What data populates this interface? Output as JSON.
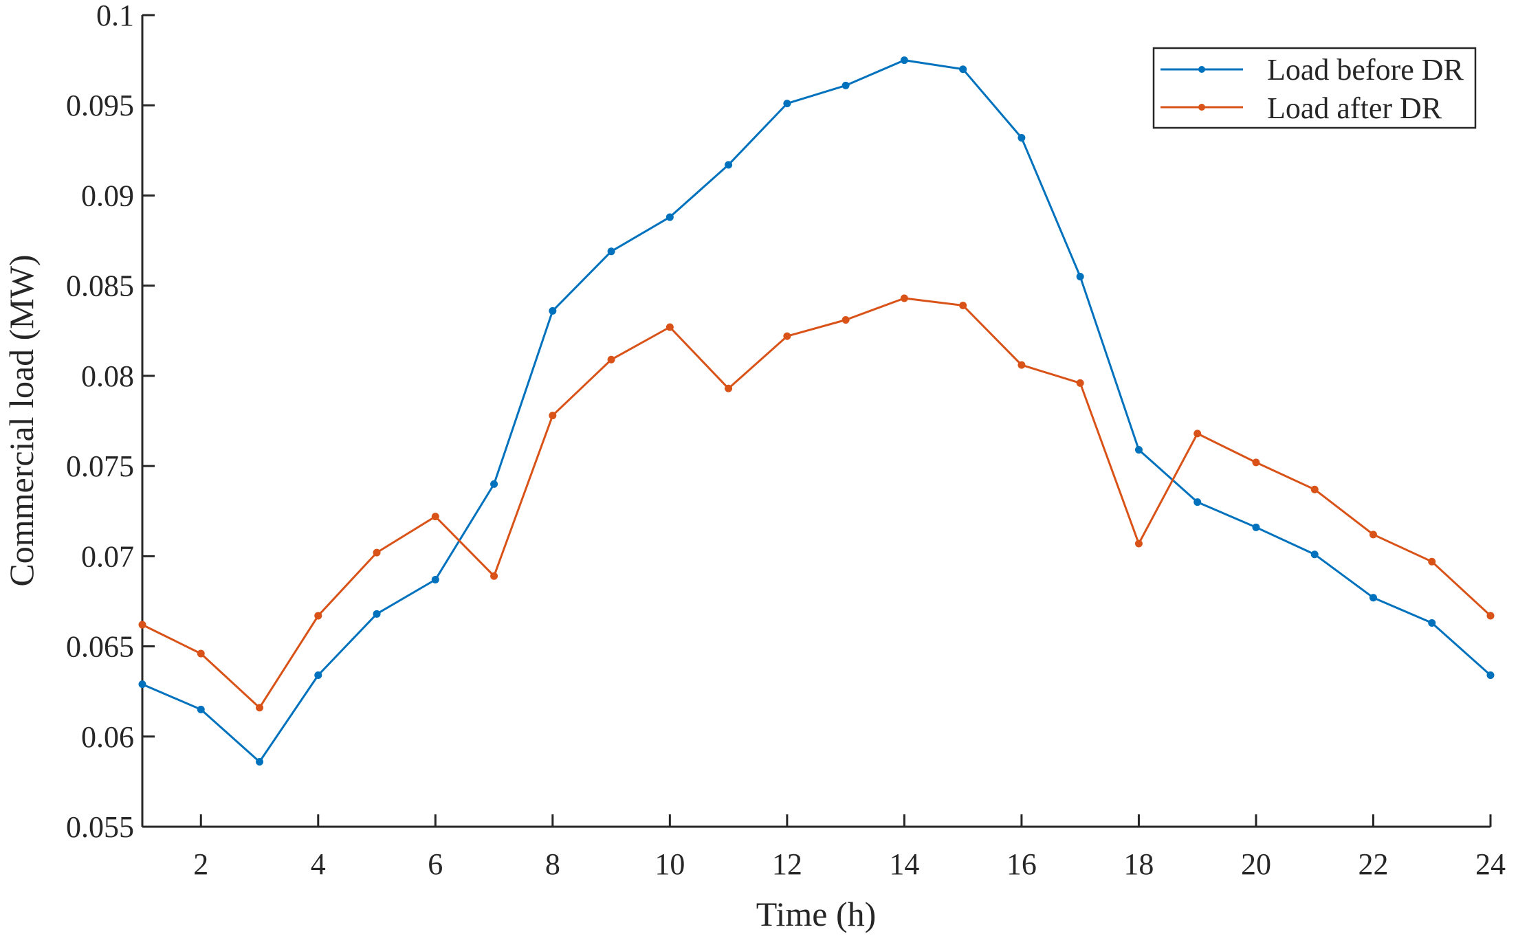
{
  "chart_data": {
    "type": "line",
    "title": "",
    "xlabel": "Time (h)",
    "ylabel": "Commercial load (MW)",
    "xlim": [
      1,
      24
    ],
    "ylim": [
      0.055,
      0.1
    ],
    "xticks": [
      2,
      4,
      6,
      8,
      10,
      12,
      14,
      16,
      18,
      20,
      22,
      24
    ],
    "xtick_labels": [
      "2",
      "4",
      "6",
      "8",
      "10",
      "12",
      "14",
      "16",
      "18",
      "20",
      "22",
      "24"
    ],
    "yticks": [
      0.055,
      0.06,
      0.065,
      0.07,
      0.075,
      0.08,
      0.085,
      0.09,
      0.095,
      0.1
    ],
    "ytick_labels": [
      "0.055",
      "0.06",
      "0.065",
      "0.07",
      "0.075",
      "0.08",
      "0.085",
      "0.09",
      "0.095",
      "0.1"
    ],
    "grid": false,
    "legend_position": "top-right",
    "x": [
      1,
      2,
      3,
      4,
      5,
      6,
      7,
      8,
      9,
      10,
      11,
      12,
      13,
      14,
      15,
      16,
      17,
      18,
      19,
      20,
      21,
      22,
      23,
      24
    ],
    "series": [
      {
        "name": "Load before DR",
        "color": "#0072BD",
        "marker": "dot",
        "values": [
          0.0629,
          0.0615,
          0.0586,
          0.0634,
          0.0668,
          0.0687,
          0.074,
          0.0836,
          0.0869,
          0.0888,
          0.0917,
          0.0951,
          0.0961,
          0.0975,
          0.097,
          0.0932,
          0.0855,
          0.0759,
          0.073,
          0.0716,
          0.0701,
          0.0677,
          0.0663,
          0.0634
        ]
      },
      {
        "name": "Load after DR",
        "color": "#D95319",
        "marker": "dot",
        "values": [
          0.0662,
          0.0646,
          0.0616,
          0.0667,
          0.0702,
          0.0722,
          0.0689,
          0.0778,
          0.0809,
          0.0827,
          0.0793,
          0.0822,
          0.0831,
          0.0843,
          0.0839,
          0.0806,
          0.0796,
          0.0707,
          0.0768,
          0.0752,
          0.0737,
          0.0712,
          0.0697,
          0.0667
        ]
      }
    ]
  }
}
